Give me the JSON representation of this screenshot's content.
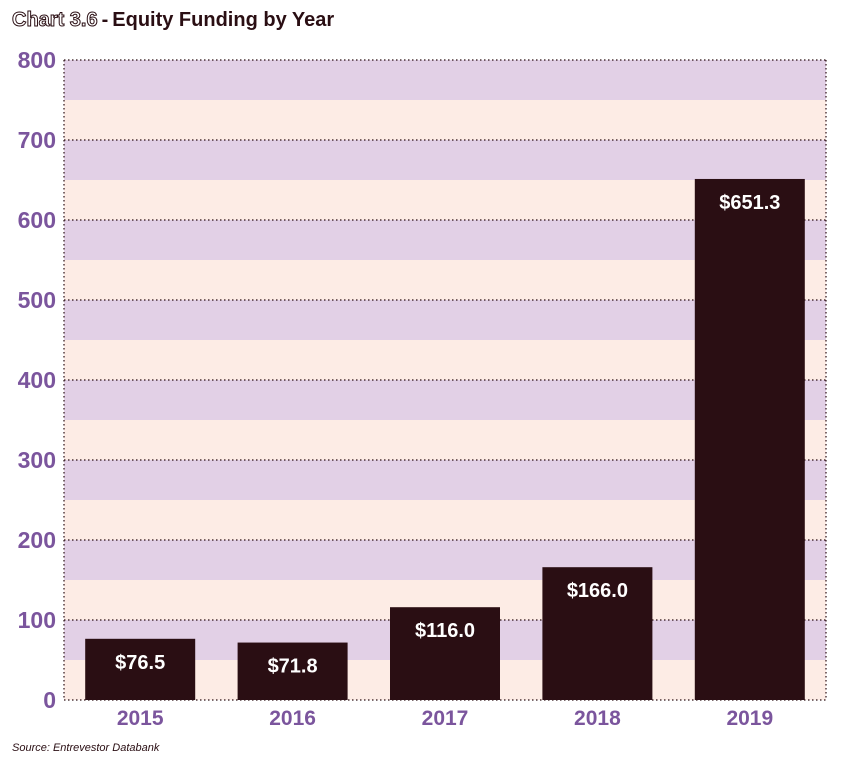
{
  "title": {
    "prefix": "Chart 3.6",
    "separator": "-",
    "main": "Equity Funding by Year"
  },
  "source": "Source: Entrevestor Databank",
  "colors": {
    "bar": "#2a0e13",
    "band_light": "#fdece5",
    "band_purple": "#e2d0e6",
    "axis_label": "#7b559d",
    "data_label": "#ffffff"
  },
  "chart_data": {
    "type": "bar",
    "categories": [
      "2015",
      "2016",
      "2017",
      "2018",
      "2019"
    ],
    "values": [
      76.5,
      71.8,
      116.0,
      166.0,
      651.3
    ],
    "data_labels": [
      "$76.5",
      "$71.8",
      "$116.0",
      "$166.0",
      "$651.3"
    ],
    "title": "Equity Funding by Year",
    "xlabel": "",
    "ylabel": "",
    "ylim": [
      0,
      800
    ],
    "yticks": [
      0,
      100,
      200,
      300,
      400,
      500,
      600,
      700,
      800
    ],
    "grid": true,
    "legend": "none"
  }
}
